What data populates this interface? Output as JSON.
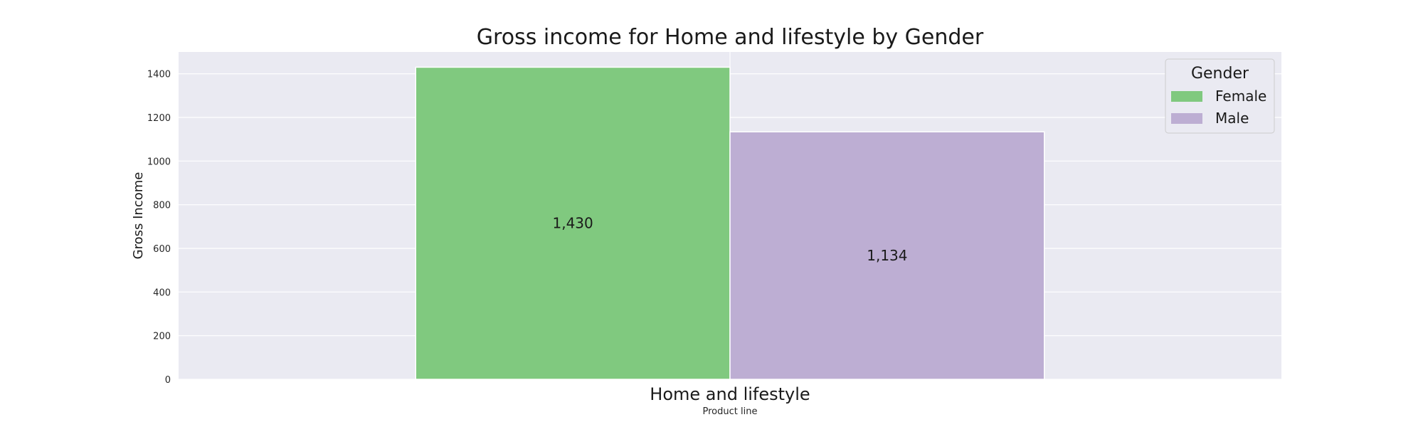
{
  "chart_data": {
    "type": "bar",
    "title": "Gross income for Home and lifestyle by Gender",
    "xlabel": "Product line",
    "ylabel": "Gross Income",
    "categories": [
      "Home and lifestyle"
    ],
    "series": [
      {
        "name": "Female",
        "values": [
          1430
        ],
        "color": "#80c97f",
        "label": "1,430"
      },
      {
        "name": "Male",
        "values": [
          1134
        ],
        "color": "#bdaed3",
        "label": "1,134"
      }
    ],
    "ylim": [
      0,
      1500
    ],
    "yticks": [
      0,
      200,
      400,
      600,
      800,
      1000,
      1200,
      1400
    ],
    "grid": true,
    "legend": {
      "title": "Gender",
      "placement": "top-right"
    },
    "colors": {
      "plot_background": "#eaeaf2",
      "grid": "#ffffff"
    }
  }
}
